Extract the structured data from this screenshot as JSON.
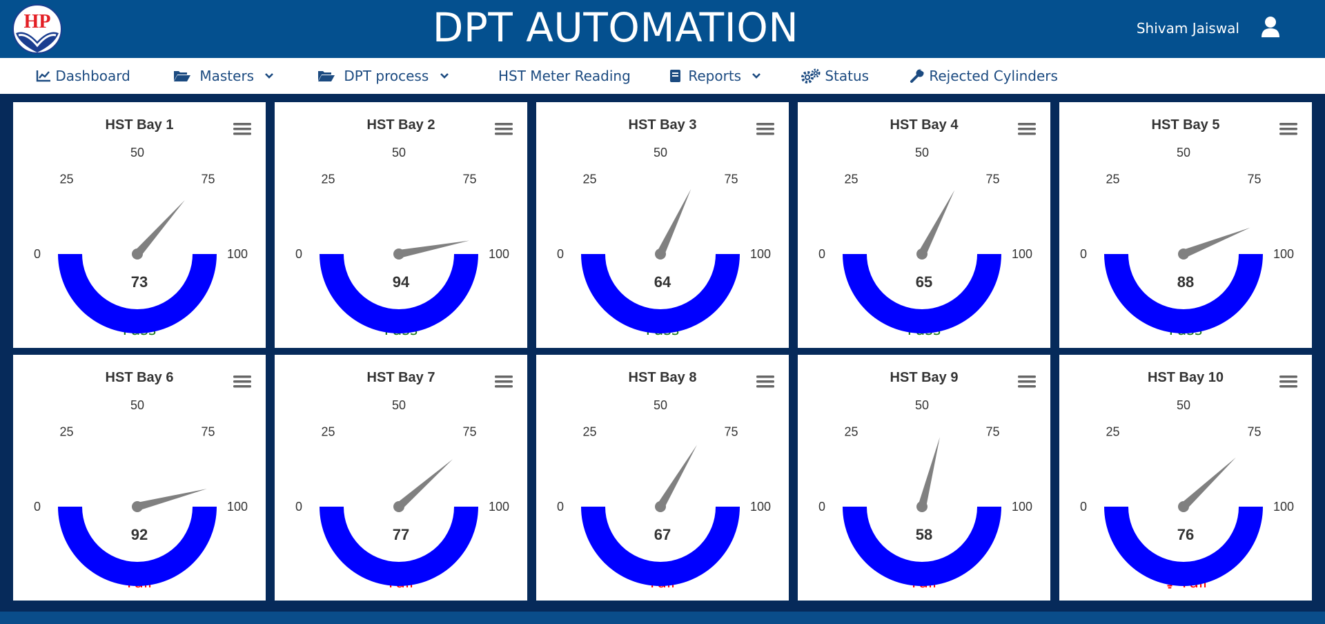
{
  "header": {
    "logo_text": "HP",
    "title": "DPT AUTOMATION",
    "user_name": "Shivam Jaiswal"
  },
  "nav": [
    {
      "label": "Dashboard",
      "icon": "chart-line-icon",
      "dropdown": false
    },
    {
      "label": "Masters",
      "icon": "folder-open-icon",
      "dropdown": true
    },
    {
      "label": "DPT process",
      "icon": "folder-open-icon",
      "dropdown": true
    },
    {
      "label": "HST Meter Reading",
      "icon": "",
      "dropdown": false
    },
    {
      "label": "Reports",
      "icon": "book-icon",
      "dropdown": true
    },
    {
      "label": "Status",
      "icon": "gears-icon",
      "dropdown": false
    },
    {
      "label": "Rejected Cylinders",
      "icon": "wrench-icon",
      "dropdown": false
    }
  ],
  "gauge_scale": {
    "min": 0,
    "max": 100,
    "ticks": [
      "0",
      "25",
      "50",
      "75",
      "100"
    ]
  },
  "colors": {
    "gauge_band": "#0000ff",
    "needle": "#808080",
    "pass": "#1a7a1a",
    "fail": "#ff0000",
    "header": "#04508f"
  },
  "bays": [
    {
      "title": "HST Bay 1",
      "value": 73,
      "status": "Pass",
      "alert": false
    },
    {
      "title": "HST Bay 2",
      "value": 94,
      "status": "Pass",
      "alert": false
    },
    {
      "title": "HST Bay 3",
      "value": 64,
      "status": "Pass",
      "alert": false
    },
    {
      "title": "HST Bay 4",
      "value": 65,
      "status": "Pass",
      "alert": false
    },
    {
      "title": "HST Bay 5",
      "value": 88,
      "status": "Pass",
      "alert": false
    },
    {
      "title": "HST Bay 6",
      "value": 92,
      "status": "Fail",
      "alert": false
    },
    {
      "title": "HST Bay 7",
      "value": 77,
      "status": "Fail",
      "alert": false
    },
    {
      "title": "HST Bay 8",
      "value": 67,
      "status": "Fail",
      "alert": false
    },
    {
      "title": "HST Bay 9",
      "value": 58,
      "status": "Fail",
      "alert": false
    },
    {
      "title": "HST Bay 10",
      "value": 76,
      "status": "Fail",
      "alert": true
    }
  ]
}
